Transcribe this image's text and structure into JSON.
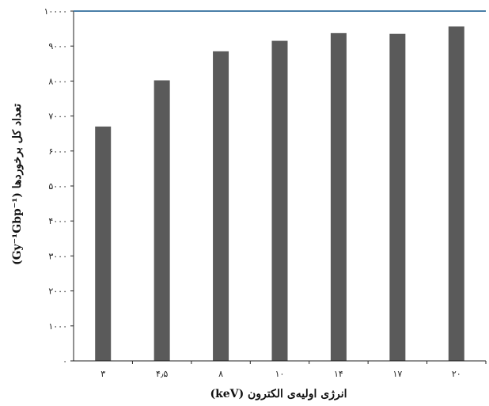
{
  "chart_data": {
    "type": "bar",
    "categories": [
      "۳",
      "۴٫۵",
      "۸",
      "۱۰",
      "۱۴",
      "۱۷",
      "۲۰"
    ],
    "values": [
      6700,
      8020,
      8850,
      9150,
      9370,
      9350,
      9560
    ],
    "xlabel": "انرژی اولیه‌ی الکترون (keV)",
    "ylabel": "تعداد کل برخوردها (Gy⁻¹Gbp⁻¹)",
    "ylim": [
      0,
      10000
    ],
    "yticks": [
      0,
      1000,
      2000,
      3000,
      4000,
      5000,
      6000,
      7000,
      8000,
      9000,
      10000
    ],
    "ytick_labels": [
      "۰",
      "۱۰۰۰",
      "۲۰۰۰",
      "۳۰۰۰",
      "۴۰۰۰",
      "۵۰۰۰",
      "۶۰۰۰",
      "۷۰۰۰",
      "۸۰۰۰",
      "۹۰۰۰",
      "۱۰۰۰۰"
    ],
    "grid": false,
    "bar_color": "#5a5a5a",
    "top_line_color": "#4a7fa8"
  }
}
